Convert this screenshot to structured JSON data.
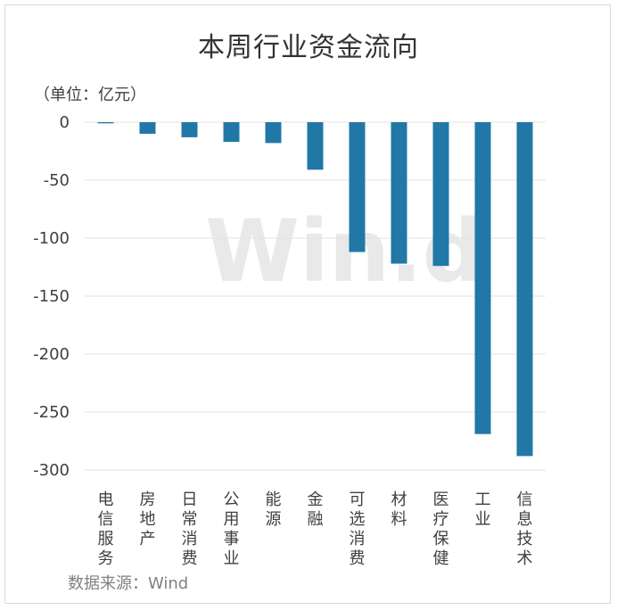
{
  "chart_data": {
    "type": "bar",
    "title": "本周行业资金流向",
    "unit_label": "（单位：亿元）",
    "source": "数据来源：Wind",
    "watermark": "Win.d",
    "categories": [
      "电信服务",
      "房地产",
      "日常消费",
      "公用事业",
      "能源",
      "金融",
      "可选消费",
      "材料",
      "医疗保健",
      "工业",
      "信息技术"
    ],
    "values": [
      -1,
      -10,
      -13,
      -17,
      -18,
      -41,
      -112,
      -122,
      -124,
      -269,
      -288
    ],
    "yticks": [
      "0",
      "-50",
      "-100",
      "-150",
      "-200",
      "-250",
      "-300"
    ],
    "ylim": [
      -300,
      0
    ],
    "bar_color": "#2178a6",
    "grid": true
  }
}
